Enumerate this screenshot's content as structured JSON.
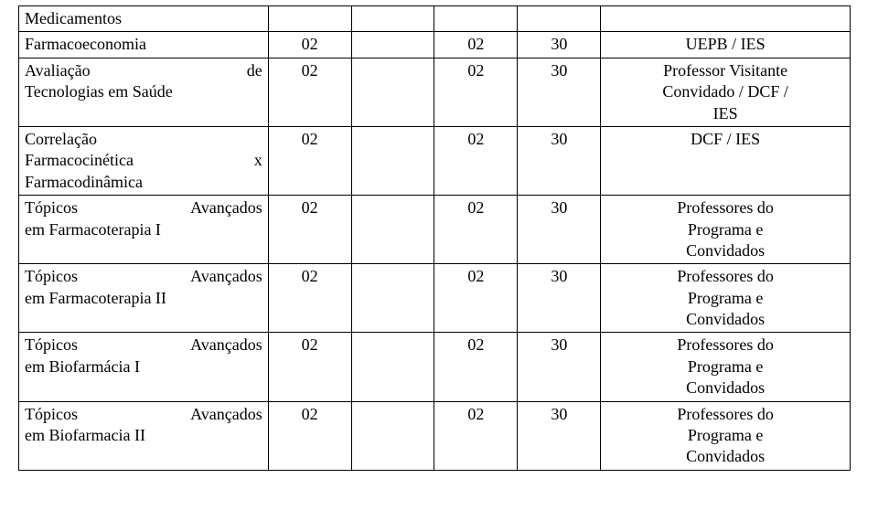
{
  "table": {
    "columns_width_pct": [
      30,
      10,
      10,
      10,
      10,
      30
    ],
    "border_color": "#000000",
    "background_color": "#ffffff",
    "font_family": "Times New Roman",
    "font_size_pt": 14,
    "rows": [
      {
        "c1_html": "Medicamentos",
        "c2": "",
        "c3": "",
        "c4": "",
        "c5": "",
        "c6_lines": [
          ""
        ],
        "c6_align": "left"
      },
      {
        "c1_html": "Farmacoeconomia",
        "c2": "02",
        "c3": "",
        "c4": "02",
        "c5": "30",
        "c6_lines": [
          "UEPB / IES"
        ],
        "c6_align": "center"
      },
      {
        "c1_left": "Avaliação",
        "c1_right": "de",
        "c1_line2": "Tecnologias em Saúde",
        "c2": "02",
        "c3": "",
        "c4": "02",
        "c5": "30",
        "c6_lines": [
          "Professor Visitante",
          "Convidado / DCF /",
          "IES"
        ],
        "c6_align": "center"
      },
      {
        "c1_line1": "Correlação",
        "c1_left2": "Farmacocinética",
        "c1_right2": "x",
        "c1_line3": "Farmacodinâmica",
        "c2": "02",
        "c3": "",
        "c4": "02",
        "c5": "30",
        "c6_lines": [
          "DCF / IES"
        ],
        "c6_align": "center"
      },
      {
        "c1_left": "Tópicos",
        "c1_right": "Avançados",
        "c1_line2": "em Farmacoterapia I",
        "c2": "02",
        "c3": "",
        "c4": "02",
        "c5": "30",
        "c6_lines": [
          "Professores do",
          "Programa e",
          "Convidados"
        ],
        "c6_align": "center"
      },
      {
        "c1_left": "Tópicos",
        "c1_right": "Avançados",
        "c1_line2": "em Farmacoterapia II",
        "c2": "02",
        "c3": "",
        "c4": "02",
        "c5": "30",
        "c6_lines": [
          "Professores do",
          "Programa e",
          "Convidados"
        ],
        "c6_align": "center"
      },
      {
        "c1_left": "Tópicos",
        "c1_right": "Avançados",
        "c1_line2": "em Biofarmácia I",
        "c2": "02",
        "c3": "",
        "c4": "02",
        "c5": "30",
        "c6_lines": [
          "Professores do",
          "Programa e",
          "Convidados"
        ],
        "c6_align": "center"
      },
      {
        "c1_left": "Tópicos",
        "c1_right": "Avançados",
        "c1_line2": "em Biofarmacia II",
        "c2": "02",
        "c3": "",
        "c4": "02",
        "c5": "30",
        "c6_lines": [
          "Professores do",
          "Programa e",
          "Convidados"
        ],
        "c6_align": "center"
      }
    ]
  }
}
